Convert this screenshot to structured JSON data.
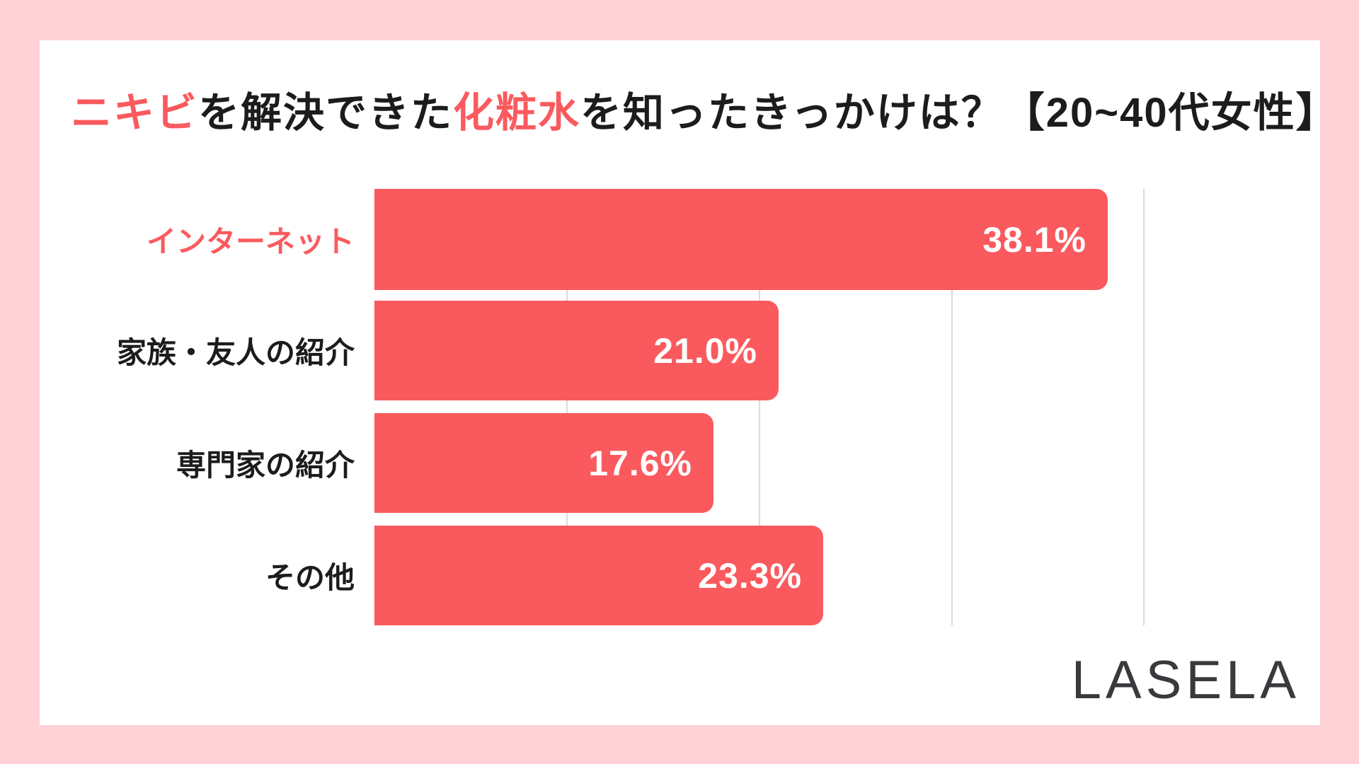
{
  "page": {
    "background_color": "#ffd2d7",
    "card_color": "#ffffff"
  },
  "title": {
    "full_text": "ニキビを解決できた化粧水を知ったきっかけは？【20~40代女性】",
    "segments": [
      {
        "text": "ニキビ",
        "style": "color:#fa5a5e"
      },
      {
        "text": "を解決できた",
        "style": "color:#1c1c1c"
      },
      {
        "text": "化粧水",
        "style": "color:#fa5a5e"
      },
      {
        "text": "を知ったきっかけは？【20~40代女性】",
        "style": "color:#1c1c1c"
      }
    ]
  },
  "chart_data": {
    "type": "bar",
    "orientation": "horizontal",
    "title": "ニキビを解決できた化粧水を知ったきっかけは？【20~40代女性】",
    "categories": [
      "インターネット",
      "家族・友人の紹介",
      "専門家の紹介",
      "その他"
    ],
    "values": [
      38.1,
      21.0,
      17.6,
      23.3
    ],
    "value_labels": [
      "38.1%",
      "21.0%",
      "17.6%",
      "23.3%"
    ],
    "unit": "%",
    "xlim": [
      0,
      40
    ],
    "gridline_values": [
      10,
      20,
      30,
      40
    ],
    "grid": "vertical",
    "legend": "none",
    "bar_color": "#fa5a5e",
    "gridline_color": "#dbdbdb",
    "value_label_color": "#ffffff",
    "category_label_styles": [
      "color:#fa5a5e",
      "color:#1c1c1c",
      "color:#1c1c1c",
      "color:#1c1c1c"
    ],
    "bar_styles": [
      "width:1036px",
      "width:571px",
      "width:479px",
      "width:634px"
    ]
  },
  "logo": {
    "text": "LASELA",
    "color": "#3a3a3e"
  }
}
